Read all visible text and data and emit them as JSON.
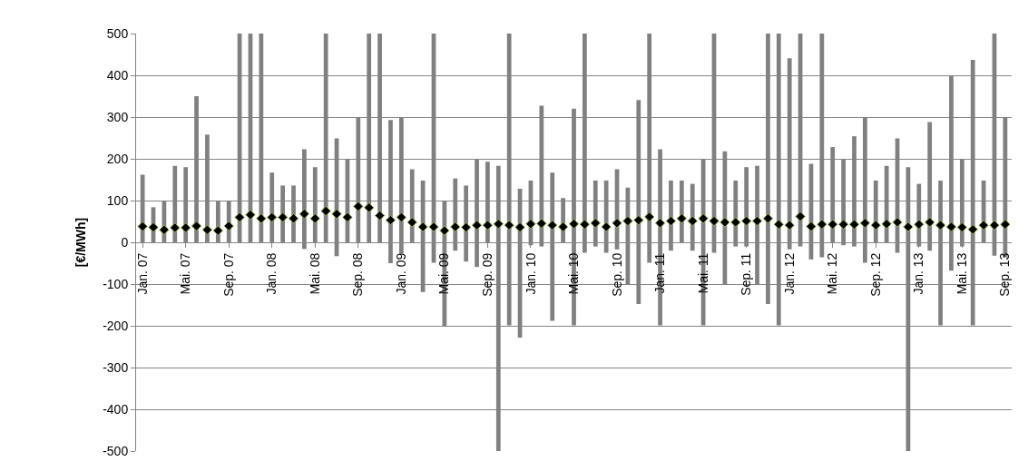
{
  "chart_data": {
    "type": "bar",
    "ylabel": "[€/MWh]",
    "categories": [
      "Jan. 07",
      null,
      null,
      null,
      "Mai. 07",
      null,
      null,
      null,
      "Sep. 07",
      null,
      null,
      null,
      "Jan. 08",
      null,
      null,
      null,
      "Mai. 08",
      null,
      null,
      null,
      "Sep. 08",
      null,
      null,
      null,
      "Jan. 09",
      null,
      null,
      null,
      "Mai. 09",
      null,
      null,
      null,
      "Sep. 09",
      null,
      null,
      null,
      "Jan. 10",
      null,
      null,
      null,
      "Mai. 10",
      null,
      null,
      null,
      "Sep. 10",
      null,
      null,
      null,
      "Jan. 11",
      null,
      null,
      null,
      "Mai. 11",
      null,
      null,
      null,
      "Sep. 11",
      null,
      null,
      null,
      "Jan. 12",
      null,
      null,
      null,
      "Mai. 12",
      null,
      null,
      null,
      "Sep. 12",
      null,
      null,
      null,
      "Jan. 13",
      null,
      null,
      null,
      "Mai. 13",
      null,
      null,
      null,
      "Sep. 13"
    ],
    "series": [
      {
        "color": "#808080",
        "values": [
          162,
          84,
          100,
          183,
          180,
          350,
          258,
          100,
          100,
          500,
          500,
          500,
          167,
          136,
          136,
          239,
          180,
          500,
          282,
          200,
          300,
          500,
          500,
          343,
          327,
          175,
          267,
          549,
          300,
          173,
          182,
          258,
          193,
          683,
          699,
          356,
          155,
          337,
          355,
          106,
          519,
          525,
          158,
          173,
          192,
          232,
          489,
          549,
          422,
          168,
          148,
          160,
          398,
          525,
          319,
          158,
          190,
          284,
          648,
          699,
          458,
          510,
          229,
          536,
          228,
          206,
          264,
          349,
          148,
          183,
          274,
          680,
          150,
          308,
          347,
          468,
          209,
          636,
          148,
          532,
          336
        ],
        "base": [
          0,
          0,
          0,
          0,
          0,
          0,
          0,
          0,
          0,
          0,
          0,
          0,
          0,
          0,
          0,
          -16,
          0,
          0,
          -33,
          0,
          0,
          0,
          0,
          -50,
          -27,
          0,
          -119,
          -49,
          -200,
          -20,
          -46,
          -59,
          0,
          -500,
          -199,
          -228,
          -7,
          -10,
          -188,
          0,
          -199,
          -25,
          -10,
          -25,
          -17,
          -101,
          -148,
          -49,
          -199,
          -20,
          0,
          -20,
          -199,
          -25,
          -101,
          -10,
          -10,
          -101,
          -148,
          -199,
          -17,
          -10,
          -41,
          -36,
          0,
          -7,
          -10,
          -49,
          0,
          0,
          -25,
          -500,
          -10,
          -20,
          -199,
          -68,
          -10,
          -199,
          0,
          -32,
          -36
        ]
      },
      {
        "type": "scatter",
        "color": "#000000",
        "marker": "diamond",
        "values": [
          38,
          36,
          30,
          35,
          35,
          39,
          30,
          28,
          39,
          60,
          66,
          57,
          60,
          60,
          57,
          68,
          57,
          75,
          68,
          60,
          86,
          83,
          64,
          53,
          60,
          48,
          37,
          37,
          28,
          37,
          36,
          41,
          41,
          44,
          41,
          36,
          44,
          45,
          41,
          37,
          44,
          43,
          46,
          37,
          46,
          51,
          53,
          61,
          46,
          51,
          57,
          51,
          57,
          51,
          48,
          48,
          51,
          51,
          57,
          43,
          41,
          62,
          38,
          43,
          43,
          43,
          43,
          46,
          41,
          44,
          48,
          37,
          43,
          48,
          41,
          37,
          36,
          31,
          41,
          41,
          43
        ]
      }
    ],
    "ylim": [
      -500,
      500
    ],
    "yticks": [
      -500,
      -400,
      -300,
      -200,
      -100,
      0,
      100,
      200,
      300,
      400,
      500
    ],
    "grid": "y"
  }
}
